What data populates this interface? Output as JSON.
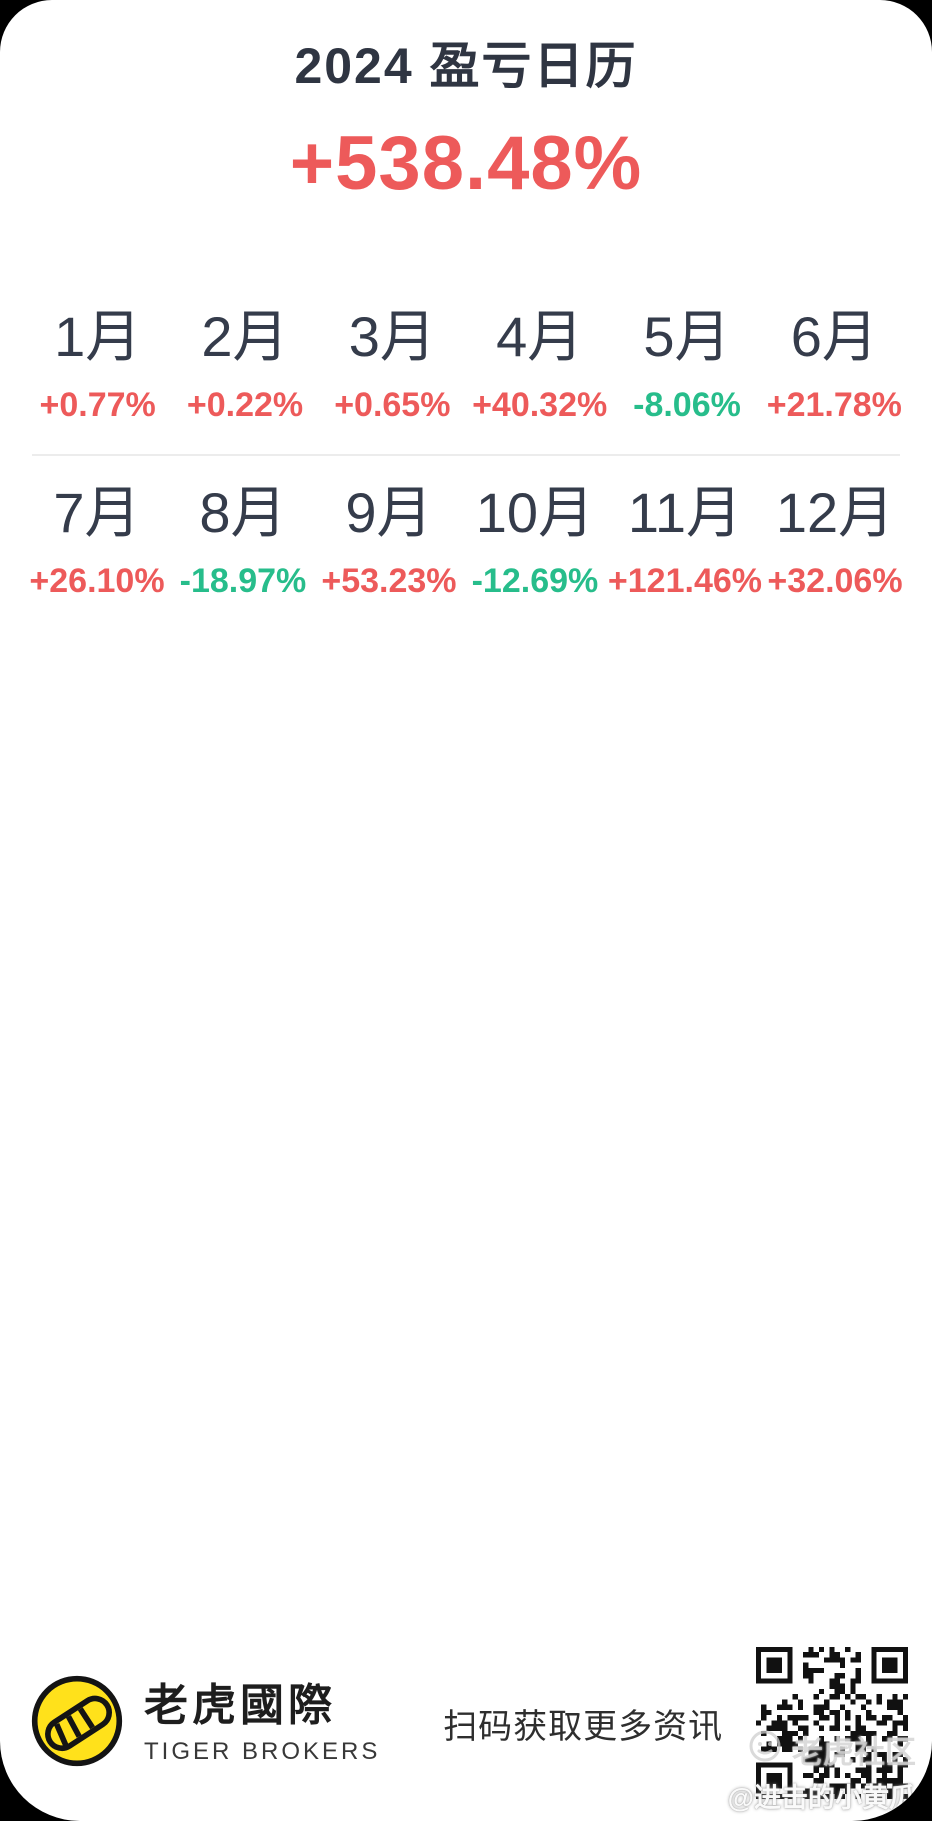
{
  "page": {
    "title": "2024 盈亏日历",
    "total_return": "+538.48%"
  },
  "colors": {
    "gain": "#ed5a5a",
    "loss": "#27bd8b",
    "title_dark": "#2f3542",
    "month_dark": "#353c4b",
    "card_bg": "#ffffff",
    "outer_bg": "#000000",
    "logo_yellow": "#ffe11b"
  },
  "months": [
    {
      "label": "1月",
      "value": "+0.77%",
      "direction": "gain"
    },
    {
      "label": "2月",
      "value": "+0.22%",
      "direction": "gain"
    },
    {
      "label": "3月",
      "value": "+0.65%",
      "direction": "gain"
    },
    {
      "label": "4月",
      "value": "+40.32%",
      "direction": "gain"
    },
    {
      "label": "5月",
      "value": "-8.06%",
      "direction": "loss"
    },
    {
      "label": "6月",
      "value": "+21.78%",
      "direction": "gain"
    },
    {
      "label": "7月",
      "value": "+26.10%",
      "direction": "gain"
    },
    {
      "label": "8月",
      "value": "-18.97%",
      "direction": "loss"
    },
    {
      "label": "9月",
      "value": "+53.23%",
      "direction": "gain"
    },
    {
      "label": "10月",
      "value": "-12.69%",
      "direction": "loss"
    },
    {
      "label": "11月",
      "value": "+121.46%",
      "direction": "gain"
    },
    {
      "label": "12月",
      "value": "+32.06%",
      "direction": "gain"
    }
  ],
  "chart_data": {
    "type": "table",
    "title": "2024 盈亏日历",
    "total_return_pct": 538.48,
    "categories": [
      "1月",
      "2月",
      "3月",
      "4月",
      "5月",
      "6月",
      "7月",
      "8月",
      "9月",
      "10月",
      "11月",
      "12月"
    ],
    "values": [
      0.77,
      0.22,
      0.65,
      40.32,
      -8.06,
      21.78,
      26.1,
      -18.97,
      53.23,
      -12.69,
      121.46,
      32.06
    ],
    "value_unit": "%",
    "color_convention": "red = gain, green = loss"
  },
  "footer": {
    "brand_cn": "老虎國際",
    "brand_en": "TIGER BROKERS",
    "tagline": "扫码获取更多资讯",
    "logo_icon": "tiger-tail-logo",
    "qr_icon": "qr-code"
  },
  "watermark": {
    "community": "老虎社区",
    "user": "@进击的小黄瓜"
  }
}
